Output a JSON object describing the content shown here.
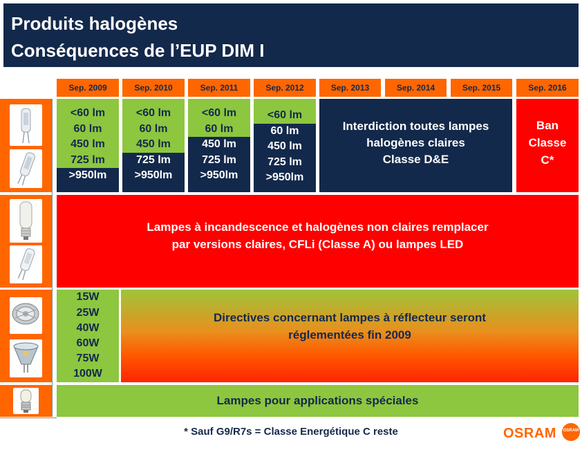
{
  "header": {
    "line1": "Produits halogènes",
    "line2": "Conséquences de l’EUP DIM I"
  },
  "years": [
    "Sep. 2009",
    "Sep. 2010",
    "Sep. 2011",
    "Sep. 2012",
    "Sep. 2013",
    "Sep. 2014",
    "Sep. 2015",
    "Sep. 2016"
  ],
  "clear_halogen": {
    "col2009": [
      "<60 lm",
      "60 lm",
      "450 lm",
      "725 lm",
      ">950lm"
    ],
    "col2010": [
      "<60 lm",
      "60 lm",
      "450 lm",
      "725 lm",
      ">950lm"
    ],
    "col2011": [
      "<60 lm",
      "60 lm",
      "450 lm",
      "725 lm",
      ">950lm"
    ],
    "col2012": [
      "<60 lm",
      "60 lm",
      "450 lm",
      "725 lm",
      ">950lm"
    ],
    "ban_2013": [
      "Interdiction toutes lampes",
      "halogènes claires",
      "Classe D&E"
    ],
    "ban_2016": [
      "Ban",
      "Classe",
      "C*"
    ]
  },
  "non_clear": {
    "line1": "Lampes à incandescence et halogènes non claires remplacer",
    "line2": "par versions claires, CFLi (Classe A) ou lampes LED"
  },
  "reflector": {
    "watts": [
      "15W",
      "25W",
      "40W",
      "60W",
      "75W",
      "100W"
    ],
    "line1": "Directives concernant lampes à réflecteur seront",
    "line2": "réglementées fin 2009"
  },
  "special": {
    "label": "Lampes pour applications spéciales"
  },
  "footnote": "* Sauf G9/R7s = Classe Energétique C reste",
  "logo": {
    "text": "OSRAM",
    "badge": "OSRAM"
  },
  "colors": {
    "navy": "#13294b",
    "orange": "#ff6600",
    "green": "#8dc63f",
    "red": "#ff0000"
  },
  "icons": [
    "g9-capsule-bulb-icon",
    "g9-capsule-bulb-icon",
    "frosted-capsule-bulb-icon",
    "g9-capsule-bulb-icon",
    "aluminium-reflector-bulb-icon",
    "dichroic-reflector-bulb-icon",
    "small-appliance-bulb-icon"
  ]
}
